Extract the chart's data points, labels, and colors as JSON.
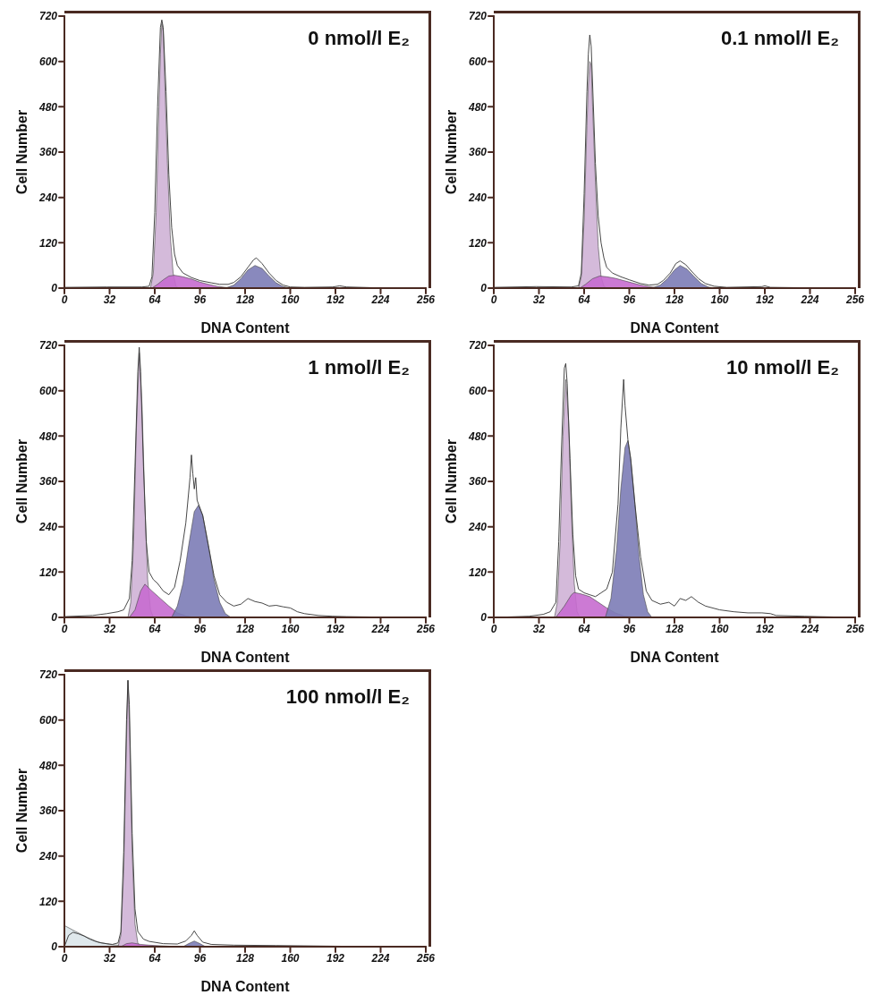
{
  "chart_data": [
    {
      "type": "area",
      "title": "0 nmol/l E₂",
      "xlabel": "DNA Content",
      "ylabel": "Cell Number",
      "xlim": [
        0,
        256
      ],
      "ylim": [
        0,
        720
      ],
      "xticks": [
        0,
        32,
        64,
        96,
        128,
        160,
        192,
        224,
        256
      ],
      "yticks": [
        0,
        120,
        240,
        360,
        480,
        600,
        720
      ],
      "grid": false,
      "marker": "none",
      "series": [
        {
          "color": "#cfb3d6",
          "x": [
            61,
            63,
            65,
            67,
            68,
            69,
            70,
            71,
            73,
            75,
            77,
            79,
            81
          ],
          "values": [
            0,
            40,
            200,
            480,
            620,
            700,
            680,
            560,
            330,
            140,
            40,
            5,
            0
          ]
        },
        {
          "color": "#c76ccf",
          "x": [
            62,
            66,
            70,
            74,
            78,
            84,
            90,
            96,
            102,
            108,
            114,
            120
          ],
          "values": [
            0,
            10,
            22,
            32,
            34,
            30,
            24,
            16,
            10,
            5,
            2,
            0
          ]
        },
        {
          "color": "#7c7cb6",
          "x": [
            114,
            120,
            125,
            130,
            135,
            140,
            145,
            150,
            155,
            160
          ],
          "values": [
            0,
            8,
            25,
            48,
            60,
            52,
            32,
            14,
            4,
            0
          ]
        },
        {
          "type": "line",
          "color": "#333333",
          "x": [
            0,
            30,
            55,
            60,
            62,
            64,
            66,
            68,
            69,
            70,
            72,
            74,
            76,
            78,
            80,
            84,
            90,
            96,
            104,
            110,
            116,
            120,
            125,
            130,
            134,
            136,
            140,
            145,
            150,
            155,
            160,
            170,
            190,
            195,
            200,
            220,
            256
          ],
          "values": [
            2,
            3,
            3,
            5,
            30,
            200,
            480,
            690,
            710,
            690,
            520,
            300,
            160,
            90,
            60,
            40,
            28,
            20,
            14,
            10,
            10,
            15,
            30,
            55,
            75,
            80,
            65,
            40,
            20,
            8,
            3,
            2,
            3,
            6,
            3,
            1,
            0
          ]
        }
      ]
    },
    {
      "type": "area",
      "title": "0.1 nmol/l E₂",
      "xlabel": "DNA Content",
      "ylabel": "Cell Number",
      "xlim": [
        0,
        256
      ],
      "ylim": [
        0,
        720
      ],
      "xticks": [
        0,
        32,
        64,
        96,
        128,
        160,
        192,
        224,
        256
      ],
      "yticks": [
        0,
        120,
        240,
        360,
        480,
        600,
        720
      ],
      "grid": false,
      "marker": "none",
      "series": [
        {
          "color": "#cfb3d6",
          "x": [
            60,
            62,
            64,
            66,
            67,
            68,
            69,
            70,
            72,
            74,
            76,
            78,
            80
          ],
          "values": [
            0,
            30,
            180,
            430,
            540,
            600,
            590,
            480,
            280,
            110,
            30,
            5,
            0
          ]
        },
        {
          "color": "#c76ccf",
          "x": [
            61,
            65,
            70,
            75,
            80,
            86,
            92,
            98,
            104,
            110,
            116,
            120
          ],
          "values": [
            0,
            10,
            25,
            32,
            30,
            26,
            20,
            14,
            8,
            4,
            1,
            0
          ]
        },
        {
          "color": "#7c7cb6",
          "x": [
            112,
            118,
            123,
            128,
            132,
            137,
            142,
            147,
            152,
            156
          ],
          "values": [
            0,
            8,
            25,
            48,
            60,
            50,
            30,
            12,
            3,
            0
          ]
        },
        {
          "type": "line",
          "color": "#333333",
          "x": [
            0,
            30,
            55,
            60,
            62,
            64,
            66,
            67,
            68,
            69,
            70,
            72,
            74,
            76,
            78,
            80,
            84,
            90,
            96,
            104,
            110,
            116,
            120,
            125,
            129,
            132,
            136,
            140,
            145,
            150,
            156,
            165,
            190,
            192,
            196,
            220,
            256
          ],
          "values": [
            2,
            4,
            3,
            6,
            40,
            250,
            520,
            620,
            670,
            640,
            540,
            330,
            190,
            120,
            80,
            55,
            40,
            30,
            22,
            12,
            8,
            10,
            20,
            40,
            65,
            72,
            62,
            45,
            25,
            12,
            5,
            2,
            4,
            6,
            2,
            1,
            0
          ]
        }
      ]
    },
    {
      "type": "area",
      "title": "1 nmol/l E₂",
      "xlabel": "DNA Content",
      "ylabel": "Cell Number",
      "xlim": [
        0,
        256
      ],
      "ylim": [
        0,
        720
      ],
      "xticks": [
        0,
        32,
        64,
        96,
        128,
        160,
        192,
        224,
        256
      ],
      "yticks": [
        0,
        120,
        240,
        360,
        480,
        600,
        720
      ],
      "grid": false,
      "marker": "none",
      "series": [
        {
          "color": "#cfb3d6",
          "x": [
            45,
            47,
            49,
            51,
            53,
            55,
            57,
            59,
            61,
            63
          ],
          "values": [
            0,
            40,
            200,
            500,
            700,
            560,
            300,
            100,
            20,
            0
          ]
        },
        {
          "color": "#c76ccf",
          "x": [
            46,
            50,
            54,
            57,
            62,
            68,
            74,
            80,
            86,
            92
          ],
          "values": [
            0,
            20,
            70,
            88,
            70,
            50,
            30,
            12,
            4,
            0
          ]
        },
        {
          "color": "#7c7cb6",
          "x": [
            76,
            80,
            84,
            88,
            92,
            95,
            98,
            102,
            106,
            110,
            114,
            118
          ],
          "values": [
            0,
            30,
            90,
            190,
            280,
            297,
            270,
            190,
            100,
            40,
            10,
            0
          ]
        },
        {
          "type": "line",
          "color": "#333333",
          "x": [
            0,
            20,
            30,
            38,
            42,
            46,
            48,
            50,
            52,
            53,
            54,
            56,
            58,
            60,
            63,
            66,
            70,
            74,
            78,
            82,
            86,
            89,
            90,
            91,
            92,
            93,
            94,
            98,
            102,
            106,
            110,
            115,
            120,
            125,
            130,
            135,
            140,
            145,
            150,
            155,
            160,
            165,
            170,
            180,
            190,
            200,
            220,
            256
          ],
          "values": [
            2,
            5,
            10,
            15,
            20,
            50,
            150,
            400,
            650,
            715,
            650,
            400,
            200,
            120,
            100,
            90,
            70,
            60,
            80,
            150,
            250,
            370,
            430,
            380,
            340,
            370,
            310,
            270,
            190,
            110,
            60,
            40,
            30,
            35,
            50,
            42,
            38,
            30,
            32,
            28,
            25,
            15,
            10,
            5,
            3,
            2,
            1,
            0
          ]
        }
      ]
    },
    {
      "type": "area",
      "title": "10 nmol/l E₂",
      "xlabel": "DNA Content",
      "ylabel": "Cell Number",
      "xlim": [
        0,
        256
      ],
      "ylim": [
        0,
        720
      ],
      "xticks": [
        0,
        32,
        64,
        96,
        128,
        160,
        192,
        224,
        256
      ],
      "yticks": [
        0,
        120,
        240,
        360,
        480,
        600,
        720
      ],
      "grid": false,
      "marker": "none",
      "series": [
        {
          "color": "#cfb3d6",
          "x": [
            43,
            45,
            47,
            49,
            51,
            53,
            55,
            57,
            59,
            61
          ],
          "values": [
            0,
            40,
            200,
            480,
            630,
            520,
            280,
            90,
            15,
            0
          ]
        },
        {
          "color": "#c76ccf",
          "x": [
            44,
            50,
            55,
            57,
            62,
            68,
            74,
            80,
            86,
            92,
            100
          ],
          "values": [
            0,
            30,
            60,
            66,
            62,
            55,
            40,
            25,
            12,
            4,
            0
          ]
        },
        {
          "color": "#7c7cb6",
          "x": [
            79,
            83,
            87,
            90,
            93,
            95,
            97,
            100,
            103,
            106,
            109,
            112
          ],
          "values": [
            0,
            50,
            180,
            340,
            450,
            468,
            420,
            300,
            160,
            60,
            15,
            0
          ]
        },
        {
          "type": "line",
          "color": "#333333",
          "x": [
            0,
            25,
            35,
            40,
            44,
            46,
            48,
            50,
            51,
            52,
            54,
            56,
            58,
            60,
            64,
            68,
            72,
            76,
            80,
            84,
            88,
            90,
            92,
            93,
            95,
            97,
            100,
            104,
            108,
            112,
            118,
            124,
            128,
            132,
            136,
            140,
            145,
            150,
            160,
            170,
            180,
            190,
            196,
            200,
            220,
            230,
            256
          ],
          "values": [
            0,
            3,
            8,
            15,
            40,
            200,
            450,
            660,
            672,
            620,
            420,
            220,
            110,
            75,
            65,
            60,
            55,
            65,
            75,
            120,
            300,
            500,
            630,
            560,
            470,
            420,
            300,
            160,
            70,
            45,
            35,
            40,
            30,
            50,
            45,
            55,
            40,
            30,
            20,
            15,
            12,
            12,
            10,
            5,
            3,
            2,
            0
          ]
        }
      ]
    },
    {
      "type": "area",
      "title": "100 nmol/l E₂",
      "xlabel": "DNA Content",
      "ylabel": "Cell Number",
      "xlim": [
        0,
        256
      ],
      "ylim": [
        0,
        720
      ],
      "xticks": [
        0,
        32,
        64,
        96,
        128,
        160,
        192,
        224,
        256
      ],
      "yticks": [
        0,
        120,
        240,
        360,
        480,
        600,
        720
      ],
      "grid": false,
      "marker": "none",
      "series": [
        {
          "color": "#dce6ea",
          "x": [
            0,
            8,
            16,
            24,
            32,
            40,
            50
          ],
          "values": [
            56,
            40,
            25,
            12,
            6,
            3,
            0
          ]
        },
        {
          "color": "#cfb3d6",
          "x": [
            38,
            40,
            42,
            44,
            45,
            46,
            48,
            50,
            52,
            54
          ],
          "values": [
            0,
            30,
            200,
            550,
            705,
            600,
            250,
            60,
            10,
            0
          ]
        },
        {
          "color": "#c76ccf",
          "x": [
            40,
            44,
            48,
            54,
            60,
            70,
            80
          ],
          "values": [
            0,
            8,
            10,
            6,
            4,
            2,
            0
          ]
        },
        {
          "color": "#7c7cb6",
          "x": [
            84,
            88,
            92,
            96,
            100
          ],
          "values": [
            0,
            8,
            15,
            8,
            0
          ]
        },
        {
          "type": "line",
          "color": "#333333",
          "x": [
            0,
            3,
            6,
            10,
            14,
            18,
            22,
            26,
            30,
            34,
            38,
            40,
            42,
            44,
            45,
            46,
            48,
            50,
            52,
            56,
            60,
            70,
            80,
            86,
            90,
            92,
            94,
            98,
            104,
            120,
            150,
            200,
            256
          ],
          "values": [
            0,
            30,
            38,
            34,
            28,
            20,
            14,
            10,
            8,
            6,
            10,
            40,
            250,
            600,
            705,
            640,
            300,
            100,
            40,
            20,
            14,
            8,
            7,
            15,
            30,
            42,
            30,
            12,
            6,
            4,
            3,
            1,
            0
          ]
        }
      ]
    }
  ]
}
